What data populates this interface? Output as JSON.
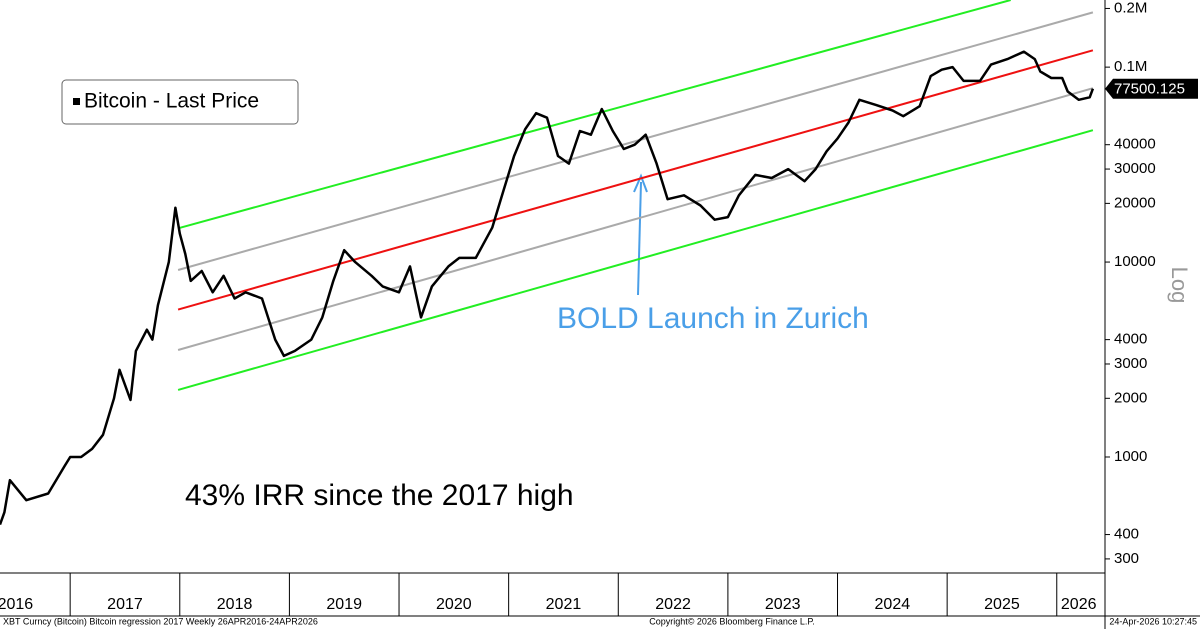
{
  "chart_data": {
    "type": "line",
    "log_y": true,
    "legend": "top-left",
    "xlim": [
      2016.36,
      2026.44
    ],
    "ylim": [
      254,
      221000
    ],
    "yticks": [
      {
        "value": 200000,
        "label": "0.2M"
      },
      {
        "value": 100000,
        "label": "0.1M"
      },
      40000,
      30000,
      20000,
      10000,
      4000,
      3000,
      2000,
      1000,
      400,
      300
    ],
    "xticks": [
      {
        "value": 2016.5,
        "label": "2016"
      },
      {
        "value": 2017.5,
        "label": "2017"
      },
      {
        "value": 2018.5,
        "label": "2018"
      },
      {
        "value": 2019.5,
        "label": "2019"
      },
      {
        "value": 2020.5,
        "label": "2020"
      },
      {
        "value": 2021.5,
        "label": "2021"
      },
      {
        "value": 2022.5,
        "label": "2022"
      },
      {
        "value": 2023.5,
        "label": "2023"
      },
      {
        "value": 2024.5,
        "label": "2024"
      },
      {
        "value": 2025.5,
        "label": "2025"
      },
      {
        "value": 2026.2,
        "label": "2026"
      }
    ],
    "y_axis_label": "Log",
    "last_price": 77500.125,
    "annotations": [
      "43% IRR since the 2017 high",
      "BOLD Launch in Zurich"
    ],
    "footer": [
      "XBT Curncy (Bitcoin) Bitcoin regression 2017 Weekly 26APR2016-24APR2026",
      "Copyright© 2026 Bloomberg Finance L.P.",
      "24-Apr-2026 10:27:45"
    ],
    "series": [
      {
        "name": "Bitcoin - Last Price",
        "color": "#000000",
        "x": [
          2016.36,
          2016.4,
          2016.45,
          2016.6,
          2016.8,
          2016.95,
          2017.0,
          2017.1,
          2017.2,
          2017.3,
          2017.4,
          2017.45,
          2017.55,
          2017.6,
          2017.7,
          2017.75,
          2017.8,
          2017.9,
          2017.96,
          2018.0,
          2018.05,
          2018.1,
          2018.2,
          2018.3,
          2018.4,
          2018.5,
          2018.6,
          2018.75,
          2018.87,
          2018.95,
          2019.05,
          2019.2,
          2019.3,
          2019.4,
          2019.5,
          2019.6,
          2019.75,
          2019.85,
          2020.0,
          2020.1,
          2020.2,
          2020.3,
          2020.45,
          2020.55,
          2020.7,
          2020.85,
          2020.95,
          2021.05,
          2021.15,
          2021.25,
          2021.35,
          2021.45,
          2021.55,
          2021.65,
          2021.75,
          2021.85,
          2021.95,
          2022.05,
          2022.15,
          2022.25,
          2022.35,
          2022.45,
          2022.6,
          2022.75,
          2022.88,
          2023.0,
          2023.1,
          2023.25,
          2023.4,
          2023.55,
          2023.7,
          2023.8,
          2023.9,
          2024.0,
          2024.1,
          2024.2,
          2024.35,
          2024.5,
          2024.6,
          2024.75,
          2024.85,
          2024.95,
          2025.05,
          2025.15,
          2025.3,
          2025.4,
          2025.55,
          2025.7,
          2025.8,
          2025.85,
          2025.95,
          2026.05,
          2026.1,
          2026.2,
          2026.3,
          2026.33
        ],
        "values": [
          450,
          520,
          760,
          600,
          650,
          900,
          1000,
          1000,
          1100,
          1300,
          2000,
          2800,
          1960,
          3500,
          4500,
          4000,
          6000,
          10000,
          19000,
          14000,
          11000,
          8000,
          9000,
          7000,
          8500,
          6500,
          7000,
          6500,
          4000,
          3300,
          3500,
          4000,
          5200,
          8000,
          11500,
          10000,
          8500,
          7500,
          7000,
          9500,
          5200,
          7500,
          9500,
          10500,
          10500,
          15000,
          23000,
          35000,
          48000,
          58000,
          55000,
          35000,
          32000,
          47000,
          45000,
          61000,
          47000,
          38000,
          40000,
          45000,
          32000,
          21000,
          22000,
          19500,
          16500,
          17000,
          22000,
          28000,
          27000,
          30000,
          26000,
          30000,
          37000,
          43000,
          52000,
          68000,
          64000,
          60000,
          56000,
          63000,
          90000,
          97000,
          100000,
          85000,
          85000,
          103000,
          110000,
          120000,
          110000,
          95000,
          88000,
          88000,
          75000,
          68000,
          70000,
          77500
        ]
      },
      {
        "color": "#ee1111",
        "x": [
          2017.985,
          2026.33
        ],
        "values": [
          5700,
          122000
        ]
      },
      {
        "color": "#aaaaaa",
        "x": [
          2017.985,
          2026.33
        ],
        "values": [
          9100,
          191000
        ]
      },
      {
        "color": "#aaaaaa",
        "x": [
          2017.985,
          2026.33
        ],
        "values": [
          3540,
          78000
        ]
      },
      {
        "color": "#22ee22",
        "x": [
          2017.985,
          2025.58
        ],
        "values": [
          14900,
          221000
        ]
      },
      {
        "color": "#22ee22",
        "x": [
          2017.985,
          2026.33
        ],
        "values": [
          2210,
          47500
        ]
      }
    ]
  }
}
